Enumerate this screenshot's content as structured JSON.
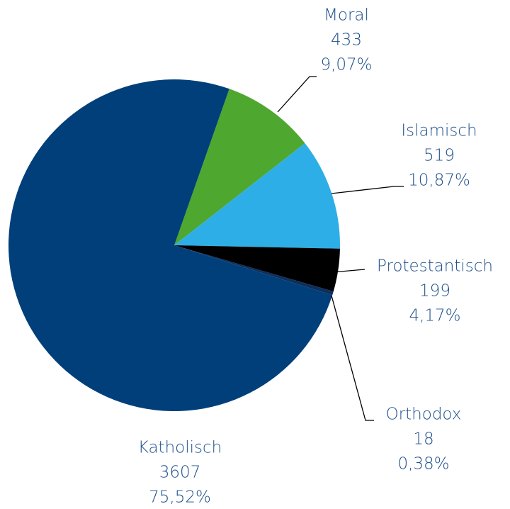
{
  "chart_data": {
    "type": "pie",
    "categories": [
      "Moral",
      "Islamisch",
      "Protestantisch",
      "Orthodox",
      "Katholisch"
    ],
    "values": [
      433,
      519,
      199,
      18,
      3607
    ],
    "percentages": [
      9.07,
      10.87,
      4.17,
      0.38,
      75.52
    ],
    "percentage_labels": [
      "9,07%",
      "10,87%",
      "4,17%",
      "0,38%",
      "75,52%"
    ],
    "colors": [
      "#4ea72e",
      "#2eaee6",
      "#000000",
      "#0c2f5e",
      "#003f7a"
    ]
  }
}
